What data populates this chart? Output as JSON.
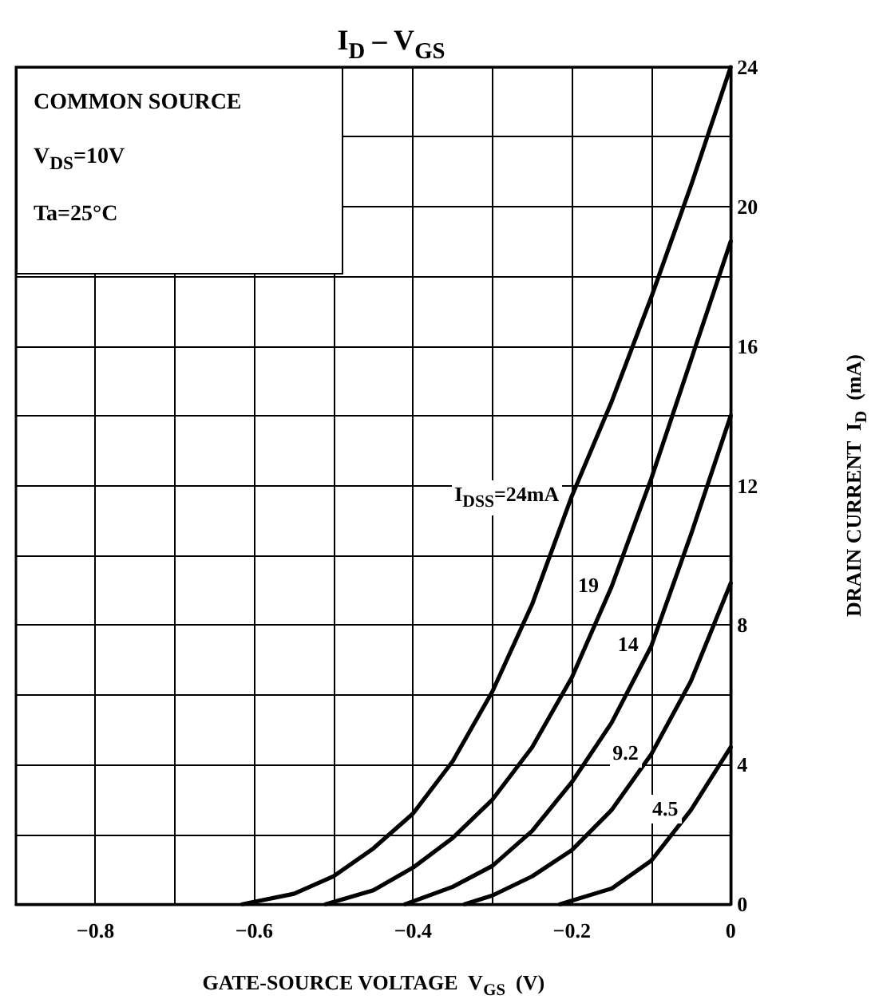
{
  "chart_data": {
    "type": "line",
    "title": "I$_{D}$ – V$_{GS}$",
    "xlabel": "GATE-SOURCE VOLTAGE  V$_{GS}$  (V)",
    "ylabel": "DRAIN CURRENT  I$_{D}$  (mA)",
    "annotations": [
      "COMMON SOURCE",
      "V$_{DS}$=10V",
      "Ta=25°C"
    ],
    "xlim": [
      -0.9,
      0
    ],
    "ylim": [
      0,
      24
    ],
    "xticks": [
      -0.8,
      {
        "value": -0.7,
        "label": null
      },
      -0.6,
      {
        "value": -0.5,
        "label": null
      },
      -0.4,
      {
        "value": -0.3,
        "label": null
      },
      -0.2,
      {
        "value": -0.1,
        "label": null
      },
      0
    ],
    "yticks": [
      0,
      {
        "value": 2,
        "label": null
      },
      4,
      {
        "value": 6,
        "label": null
      },
      8,
      {
        "value": 10,
        "label": null
      },
      12,
      {
        "value": 14,
        "label": null
      },
      16,
      {
        "value": 18,
        "label": null
      },
      20,
      {
        "value": 22,
        "label": null
      },
      24
    ],
    "grid": true,
    "legend": false,
    "marker": "none",
    "line_style": "solid",
    "series": [
      {
        "name": "I$_{DSS}$=24mA",
        "color": "#000000",
        "x": [
          -0.615,
          -0.55,
          -0.5,
          -0.45,
          -0.4,
          -0.35,
          -0.3,
          -0.25,
          -0.2,
          -0.15,
          -0.1,
          -0.05,
          0
        ],
        "values": [
          0,
          0.3,
          0.8,
          1.6,
          2.6,
          4.1,
          6.1,
          8.6,
          11.7,
          14.4,
          17.4,
          20.6,
          24
        ]
      },
      {
        "name": "19",
        "color": "#000000",
        "x": [
          -0.51,
          -0.45,
          -0.4,
          -0.35,
          -0.3,
          -0.25,
          -0.2,
          -0.15,
          -0.1,
          -0.05,
          0
        ],
        "values": [
          0,
          0.4,
          1.05,
          1.9,
          3.0,
          4.5,
          6.5,
          9.1,
          12.2,
          15.6,
          19
        ]
      },
      {
        "name": "14",
        "color": "#000000",
        "x": [
          -0.41,
          -0.35,
          -0.3,
          -0.25,
          -0.2,
          -0.15,
          -0.1,
          -0.05,
          0
        ],
        "values": [
          0,
          0.5,
          1.1,
          2.1,
          3.5,
          5.2,
          7.4,
          10.6,
          14
        ]
      },
      {
        "name": "9.2",
        "color": "#000000",
        "x": [
          -0.335,
          -0.3,
          -0.25,
          -0.2,
          -0.15,
          -0.1,
          -0.05,
          0
        ],
        "values": [
          0,
          0.25,
          0.8,
          1.55,
          2.7,
          4.3,
          6.4,
          9.2
        ]
      },
      {
        "name": "4.5",
        "color": "#000000",
        "x": [
          -0.215,
          -0.15,
          -0.1,
          -0.05,
          0
        ],
        "values": [
          0,
          0.45,
          1.25,
          2.7,
          4.5
        ]
      }
    ]
  }
}
